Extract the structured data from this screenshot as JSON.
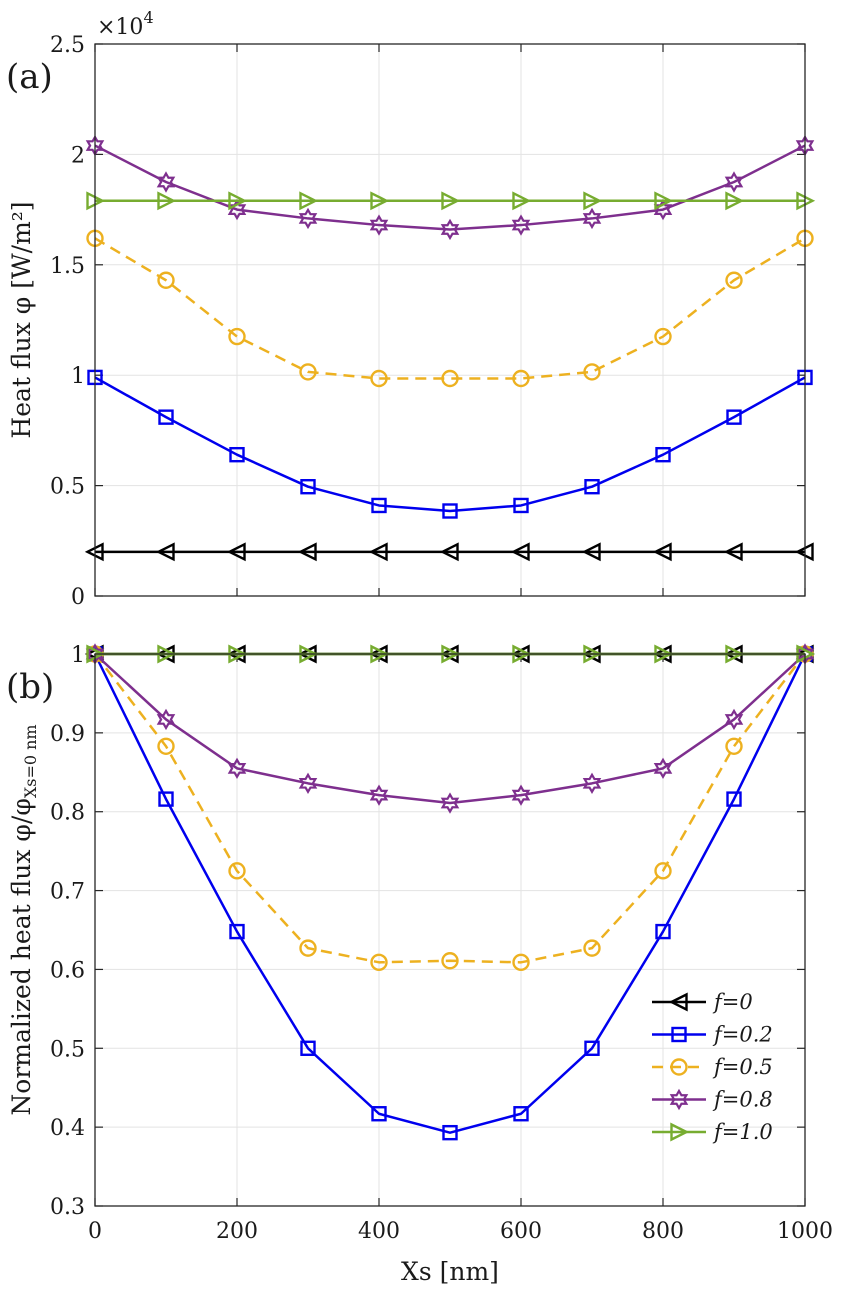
{
  "chart_data": [
    {
      "panel": "(a)",
      "type": "line",
      "multiplier_label": "×10",
      "multiplier_exp": "4",
      "ylabel": "Heat flux φ [W/m²]",
      "xlabel": "",
      "xlim": [
        0,
        1000
      ],
      "ylim": [
        0,
        2.5
      ],
      "xticks": [
        0,
        200,
        400,
        600,
        800,
        1000
      ],
      "xtick_labels": [
        "",
        "",
        "",
        "",
        "",
        ""
      ],
      "yticks": [
        0,
        0.5,
        1,
        1.5,
        2,
        2.5
      ],
      "ytick_labels": [
        "0",
        "0.5",
        "1",
        "1.5",
        "2",
        "2.5"
      ],
      "grid": true,
      "x": [
        0,
        100,
        200,
        300,
        400,
        500,
        600,
        700,
        800,
        900,
        1000
      ],
      "series": [
        {
          "name": "f=0",
          "color": "#000000",
          "marker": "triangle-left",
          "dash": "solid",
          "values": [
            0.2,
            0.2,
            0.2,
            0.2,
            0.2,
            0.2,
            0.2,
            0.2,
            0.2,
            0.2,
            0.2
          ]
        },
        {
          "name": "f=0.2",
          "color": "#0000ee",
          "marker": "square",
          "dash": "solid",
          "values": [
            0.99,
            0.81,
            0.64,
            0.495,
            0.41,
            0.385,
            0.41,
            0.495,
            0.64,
            0.81,
            0.99
          ]
        },
        {
          "name": "f=0.5",
          "color": "#edb120",
          "marker": "circle",
          "dash": "dashed",
          "values": [
            1.62,
            1.43,
            1.175,
            1.015,
            0.985,
            0.985,
            0.985,
            1.015,
            1.175,
            1.43,
            1.62
          ]
        },
        {
          "name": "f=0.8",
          "color": "#7e2f8e",
          "marker": "hexagram",
          "dash": "solid",
          "values": [
            2.04,
            1.875,
            1.75,
            1.71,
            1.68,
            1.66,
            1.68,
            1.71,
            1.75,
            1.875,
            2.04
          ]
        },
        {
          "name": "f=1.0",
          "color": "#77ac30",
          "marker": "triangle-right",
          "dash": "solid",
          "values": [
            1.79,
            1.79,
            1.79,
            1.79,
            1.79,
            1.79,
            1.79,
            1.79,
            1.79,
            1.79,
            1.79
          ]
        }
      ]
    },
    {
      "panel": "(b)",
      "type": "line",
      "ylabel": "Normalized heat flux φ/φ",
      "ylabel_sub": "Xs=0 nm",
      "xlabel": "Xs [nm]",
      "xlim": [
        0,
        1000
      ],
      "ylim": [
        0.3,
        1.0
      ],
      "xticks": [
        0,
        200,
        400,
        600,
        800,
        1000
      ],
      "xtick_labels": [
        "0",
        "200",
        "400",
        "600",
        "800",
        "1000"
      ],
      "yticks": [
        0.3,
        0.4,
        0.5,
        0.6,
        0.7,
        0.8,
        0.9,
        1.0
      ],
      "ytick_labels": [
        "0.3",
        "0.4",
        "0.5",
        "0.6",
        "0.7",
        "0.8",
        "0.9",
        "1"
      ],
      "grid": true,
      "legend_position": "bottom-right",
      "x": [
        0,
        100,
        200,
        300,
        400,
        500,
        600,
        700,
        800,
        900,
        1000
      ],
      "series": [
        {
          "name": "f=0",
          "color": "#000000",
          "marker": "triangle-left",
          "dash": "solid",
          "values": [
            1,
            1,
            1,
            1,
            1,
            1,
            1,
            1,
            1,
            1,
            1
          ]
        },
        {
          "name": "f=0.2",
          "color": "#0000ee",
          "marker": "square",
          "dash": "solid",
          "values": [
            1.0,
            0.816,
            0.648,
            0.5,
            0.417,
            0.393,
            0.417,
            0.5,
            0.648,
            0.816,
            1.0
          ]
        },
        {
          "name": "f=0.5",
          "color": "#edb120",
          "marker": "circle",
          "dash": "dashed",
          "values": [
            1.0,
            0.883,
            0.725,
            0.627,
            0.609,
            0.611,
            0.609,
            0.627,
            0.725,
            0.883,
            1.0
          ]
        },
        {
          "name": "f=0.8",
          "color": "#7e2f8e",
          "marker": "hexagram",
          "dash": "solid",
          "values": [
            1.0,
            0.917,
            0.855,
            0.836,
            0.821,
            0.811,
            0.821,
            0.836,
            0.855,
            0.917,
            1.0
          ]
        },
        {
          "name": "f=1.0",
          "color": "#77ac30",
          "marker": "triangle-right",
          "dash": "solid",
          "values": [
            1,
            1,
            1,
            1,
            1,
            1,
            1,
            1,
            1,
            1,
            1
          ]
        }
      ]
    }
  ]
}
